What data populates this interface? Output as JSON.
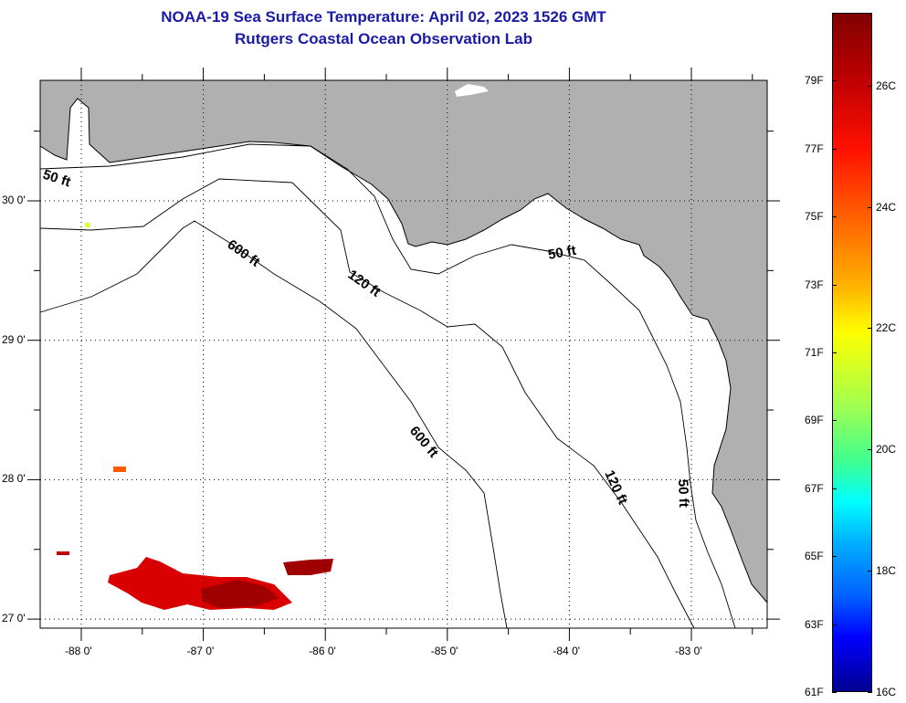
{
  "title": {
    "line1": "NOAA-19 Sea Surface Temperature:  April 02, 2023 1526 GMT",
    "line2": "Rutgers Coastal Ocean Observation Lab"
  },
  "map": {
    "lat_labels": [
      {
        "value": 30,
        "label": "30 0'"
      },
      {
        "value": 29,
        "label": "29 0'"
      },
      {
        "value": 28,
        "label": "28 0'"
      },
      {
        "value": 27,
        "label": "27 0'"
      }
    ],
    "lon_labels": [
      {
        "value": -88,
        "label": "-88 0'"
      },
      {
        "value": -87,
        "label": "-87 0'"
      },
      {
        "value": -86,
        "label": "-86 0'"
      },
      {
        "value": -85,
        "label": "-85 0'"
      },
      {
        "value": -84,
        "label": "-84 0'"
      },
      {
        "value": -83,
        "label": "-83 0'"
      }
    ],
    "contour_labels": [
      "50 ft",
      "600 ft",
      "120 ft",
      "50 ft",
      "600 ft",
      "120 ft",
      "50 ft"
    ],
    "land_color": "#b0b0b0",
    "water_color": "#ffffff"
  },
  "colorbar": {
    "fahrenheit": [
      "79F",
      "77F",
      "75F",
      "73F",
      "71F",
      "69F",
      "67F",
      "65F",
      "63F",
      "61F"
    ],
    "celsius": [
      "26C",
      "24C",
      "22C",
      "20C",
      "18C",
      "16C"
    ],
    "range_f": [
      61,
      81
    ],
    "range_c": [
      16,
      27.2
    ]
  }
}
